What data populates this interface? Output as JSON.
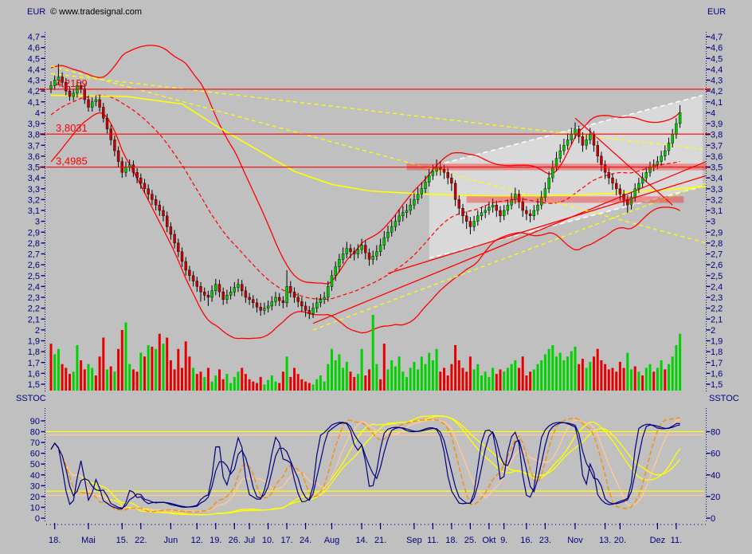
{
  "header": {
    "currency_left": "EUR",
    "copyright": "© www.tradesignal.com",
    "currency_right": "EUR"
  },
  "colors": {
    "background": "#c0c0c0",
    "axis_text": "#000080",
    "copyright_text": "#000000",
    "level_line": "#ff0000",
    "level_text": "#ff0000",
    "candle_up": "#00c800",
    "candle_down": "#c80000",
    "candle_outline": "#000000",
    "volume_up": "#00d200",
    "volume_down": "#e80000",
    "bollinger": "#ff0000",
    "ma_yellow": "#ffff00",
    "trend_red": "#ff0000",
    "dashed_yellow": "#ffff00",
    "wedge_line": "#ffffff",
    "wedge_fill": "rgba(255,255,255,0.40)",
    "zone_fill": "rgba(255,0,0,0.35)",
    "stoch_fast": "#000080",
    "stoch_orange": "#ff8c00",
    "stoch_peach": "#ffc896",
    "stoch_yellow": "#ffff00"
  },
  "chart_data": {
    "type": "candlestick",
    "unit": "EUR",
    "price_axis": {
      "min": 1.5,
      "max": 4.7,
      "step": 0.1,
      "tick_labels": [
        "4,7",
        "4,6",
        "4,5",
        "4,4",
        "4,3",
        "4,2",
        "4,1",
        "4",
        "3,9",
        "3,8",
        "3,7",
        "3,6",
        "3,5",
        "3,4",
        "3,3",
        "3,2",
        "3,1",
        "3",
        "2,9",
        "2,8",
        "2,7",
        "2,6",
        "2,5",
        "2,4",
        "2,3",
        "2,2",
        "2,1",
        "2",
        "1,9",
        "1,8",
        "1,7",
        "1,6",
        "1,5"
      ]
    },
    "x_axis": {
      "week_tick_days": [
        1,
        10,
        19,
        24,
        32,
        39,
        44,
        49,
        53,
        58,
        63,
        68,
        75,
        83,
        88,
        97,
        102,
        107,
        112,
        117,
        121,
        127,
        132,
        140,
        148,
        152,
        162,
        167
      ],
      "week_tick_labels": [
        "18.",
        "Mai",
        "15.",
        "22.",
        "Jun",
        "12.",
        "19.",
        "26.",
        "Jul",
        "10.",
        "17.",
        "24.",
        "Aug",
        "14.",
        "21.",
        "Sep",
        "11.",
        "18.",
        "25.",
        "Okt",
        "9.",
        "16.",
        "23.",
        "Nov",
        "13.",
        "20.",
        "Dez",
        "11."
      ]
    },
    "levels": [
      {
        "value": 4.2159,
        "label": "4,2159"
      },
      {
        "value": 3.8031,
        "label": "3,8031"
      },
      {
        "value": 3.4985,
        "label": "3,4985"
      }
    ],
    "zones": [
      {
        "price": 3.5,
        "half_height": 0.03,
        "from_day": 95,
        "to_day": 175
      },
      {
        "price": 3.2,
        "half_height": 0.03,
        "from_day": 111,
        "to_day": 169
      }
    ],
    "wedge": {
      "from_day": 101,
      "to_day": 174,
      "upper_from": 3.5,
      "upper_to": 4.16,
      "lower_from": 2.66,
      "lower_to": 3.32
    },
    "trendlines": [
      {
        "color": "#ff0000",
        "dash": "",
        "width": 1.3,
        "from": [
          70,
          2.06
        ],
        "to": [
          175,
          3.55
        ]
      },
      {
        "color": "#ff0000",
        "dash": "",
        "width": 1.3,
        "from": [
          90,
          2.52
        ],
        "to": [
          175,
          3.42
        ]
      },
      {
        "color": "#ff0000",
        "dash": "",
        "width": 1.3,
        "from": [
          140,
          3.95
        ],
        "to": [
          166,
          3.15
        ]
      },
      {
        "color": "#ffff00",
        "dash": "5,4",
        "width": 1.3,
        "from": [
          0,
          4.36
        ],
        "to": [
          175,
          3.66
        ]
      },
      {
        "color": "#ffff00",
        "dash": "5,4",
        "width": 1.3,
        "from": [
          0,
          4.43
        ],
        "to": [
          175,
          2.8
        ]
      },
      {
        "color": "#ffff00",
        "dash": "5,4",
        "width": 1.3,
        "from": [
          70,
          2.0
        ],
        "to": [
          175,
          3.35
        ]
      }
    ],
    "moving_average_yellow": {
      "days": [
        0,
        20,
        35,
        45,
        55,
        65,
        75,
        85,
        100,
        120,
        140,
        155,
        168,
        175
      ],
      "values": [
        4.16,
        4.15,
        4.08,
        3.86,
        3.66,
        3.46,
        3.34,
        3.28,
        3.25,
        3.23,
        3.24,
        3.27,
        3.3,
        3.32
      ]
    },
    "bollinger": {
      "period": 30,
      "stdev_mult": 2,
      "seed_closes": [
        3.5,
        3.55,
        3.58,
        3.62,
        3.65,
        3.7,
        3.72,
        3.75,
        3.8,
        3.85,
        3.88,
        3.9,
        3.95,
        3.98,
        4.0,
        4.03,
        4.05,
        4.08,
        4.1,
        4.12,
        4.14,
        4.15,
        4.16,
        4.18,
        4.18,
        4.2,
        4.2,
        4.21,
        4.22,
        4.22
      ]
    },
    "candles": [
      [
        4.22,
        4.29,
        4.18,
        4.25
      ],
      [
        4.25,
        4.34,
        4.21,
        4.3
      ],
      [
        4.3,
        4.45,
        4.26,
        4.33
      ],
      [
        4.33,
        4.37,
        4.24,
        4.28
      ],
      [
        4.28,
        4.32,
        4.16,
        4.2
      ],
      [
        4.2,
        4.24,
        4.11,
        4.15
      ],
      [
        4.15,
        4.22,
        4.11,
        4.18
      ],
      [
        4.18,
        4.29,
        4.14,
        4.25
      ],
      [
        4.25,
        4.29,
        4.18,
        4.22
      ],
      [
        4.22,
        4.26,
        4.08,
        4.12
      ],
      [
        4.12,
        4.16,
        4.01,
        4.05
      ],
      [
        4.05,
        4.14,
        4.01,
        4.1
      ],
      [
        4.1,
        4.16,
        4.06,
        4.12
      ],
      [
        4.12,
        4.16,
        4.01,
        4.05
      ],
      [
        4.05,
        4.09,
        3.91,
        3.95
      ],
      [
        3.95,
        3.99,
        3.81,
        3.85
      ],
      [
        3.85,
        3.89,
        3.7,
        3.75
      ],
      [
        3.75,
        3.79,
        3.6,
        3.65
      ],
      [
        3.65,
        3.69,
        3.5,
        3.55
      ],
      [
        3.55,
        3.59,
        3.4,
        3.45
      ],
      [
        3.45,
        3.55,
        3.41,
        3.5
      ],
      [
        3.5,
        3.57,
        3.46,
        3.52
      ],
      [
        3.52,
        3.56,
        3.41,
        3.45
      ],
      [
        3.45,
        3.49,
        3.35,
        3.4
      ],
      [
        3.4,
        3.44,
        3.3,
        3.35
      ],
      [
        3.35,
        3.39,
        3.26,
        3.3
      ],
      [
        3.3,
        3.34,
        3.2,
        3.25
      ],
      [
        3.25,
        3.29,
        3.15,
        3.2
      ],
      [
        3.2,
        3.24,
        3.1,
        3.15
      ],
      [
        3.15,
        3.19,
        3.05,
        3.1
      ],
      [
        3.1,
        3.14,
        3.0,
        3.05
      ],
      [
        3.05,
        3.09,
        2.9,
        2.95
      ],
      [
        2.95,
        2.99,
        2.83,
        2.88
      ],
      [
        2.88,
        2.92,
        2.75,
        2.8
      ],
      [
        2.8,
        2.84,
        2.67,
        2.72
      ],
      [
        2.72,
        2.76,
        2.58,
        2.63
      ],
      [
        2.63,
        2.67,
        2.5,
        2.55
      ],
      [
        2.55,
        2.59,
        2.45,
        2.5
      ],
      [
        2.5,
        2.54,
        2.4,
        2.45
      ],
      [
        2.45,
        2.49,
        2.35,
        2.4
      ],
      [
        2.4,
        2.44,
        2.26,
        2.35
      ],
      [
        2.35,
        2.39,
        2.27,
        2.32
      ],
      [
        2.32,
        2.36,
        2.22,
        2.3
      ],
      [
        2.3,
        2.41,
        2.26,
        2.36
      ],
      [
        2.36,
        2.47,
        2.32,
        2.42
      ],
      [
        2.42,
        2.46,
        2.3,
        2.35
      ],
      [
        2.35,
        2.39,
        2.23,
        2.28
      ],
      [
        2.28,
        2.37,
        2.24,
        2.32
      ],
      [
        2.32,
        2.4,
        2.28,
        2.35
      ],
      [
        2.35,
        2.44,
        2.31,
        2.39
      ],
      [
        2.39,
        2.47,
        2.35,
        2.42
      ],
      [
        2.42,
        2.46,
        2.31,
        2.36
      ],
      [
        2.36,
        2.4,
        2.25,
        2.3
      ],
      [
        2.3,
        2.34,
        2.23,
        2.28
      ],
      [
        2.28,
        2.32,
        2.2,
        2.25
      ],
      [
        2.25,
        2.29,
        2.16,
        2.21
      ],
      [
        2.21,
        2.25,
        2.13,
        2.18
      ],
      [
        2.18,
        2.25,
        2.14,
        2.2
      ],
      [
        2.2,
        2.27,
        2.16,
        2.22
      ],
      [
        2.22,
        2.31,
        2.18,
        2.26
      ],
      [
        2.26,
        2.35,
        2.22,
        2.3
      ],
      [
        2.3,
        2.34,
        2.22,
        2.27
      ],
      [
        2.27,
        2.31,
        2.2,
        2.25
      ],
      [
        2.25,
        2.55,
        2.21,
        2.4
      ],
      [
        2.4,
        2.45,
        2.3,
        2.35
      ],
      [
        2.35,
        2.39,
        2.25,
        2.3
      ],
      [
        2.3,
        2.34,
        2.21,
        2.26
      ],
      [
        2.26,
        2.3,
        2.17,
        2.22
      ],
      [
        2.22,
        2.26,
        2.12,
        2.18
      ],
      [
        2.18,
        2.22,
        2.1,
        2.15
      ],
      [
        2.15,
        2.25,
        2.11,
        2.2
      ],
      [
        2.2,
        2.3,
        2.16,
        2.25
      ],
      [
        2.25,
        2.33,
        2.21,
        2.28
      ],
      [
        2.28,
        2.35,
        2.24,
        2.3
      ],
      [
        2.3,
        2.45,
        2.26,
        2.4
      ],
      [
        2.4,
        2.55,
        2.36,
        2.5
      ],
      [
        2.5,
        2.63,
        2.45,
        2.58
      ],
      [
        2.58,
        2.7,
        2.53,
        2.65
      ],
      [
        2.65,
        2.76,
        2.61,
        2.7
      ],
      [
        2.7,
        2.81,
        2.66,
        2.75
      ],
      [
        2.75,
        2.79,
        2.66,
        2.72
      ],
      [
        2.72,
        2.76,
        2.64,
        2.7
      ],
      [
        2.7,
        2.79,
        2.66,
        2.74
      ],
      [
        2.74,
        2.84,
        2.7,
        2.78
      ],
      [
        2.78,
        2.82,
        2.65,
        2.71
      ],
      [
        2.71,
        2.75,
        2.59,
        2.65
      ],
      [
        2.65,
        2.73,
        2.6,
        2.68
      ],
      [
        2.68,
        2.78,
        2.64,
        2.72
      ],
      [
        2.72,
        2.84,
        2.68,
        2.78
      ],
      [
        2.78,
        2.91,
        2.74,
        2.85
      ],
      [
        2.85,
        2.96,
        2.81,
        2.9
      ],
      [
        2.9,
        3.01,
        2.86,
        2.95
      ],
      [
        2.95,
        3.06,
        2.91,
        3.0
      ],
      [
        3.0,
        3.11,
        2.96,
        3.05
      ],
      [
        3.05,
        3.14,
        3.0,
        3.08
      ],
      [
        3.08,
        3.16,
        3.03,
        3.1
      ],
      [
        3.1,
        3.21,
        3.06,
        3.15
      ],
      [
        3.15,
        3.26,
        3.11,
        3.2
      ],
      [
        3.2,
        3.31,
        3.16,
        3.25
      ],
      [
        3.25,
        3.36,
        3.21,
        3.3
      ],
      [
        3.3,
        3.42,
        3.26,
        3.36
      ],
      [
        3.36,
        3.48,
        3.32,
        3.42
      ],
      [
        3.42,
        3.52,
        3.38,
        3.46
      ],
      [
        3.46,
        3.57,
        3.42,
        3.5
      ],
      [
        3.5,
        3.55,
        3.42,
        3.48
      ],
      [
        3.48,
        3.52,
        3.39,
        3.45
      ],
      [
        3.45,
        3.49,
        3.34,
        3.4
      ],
      [
        3.4,
        3.44,
        3.28,
        3.35
      ],
      [
        3.35,
        3.38,
        3.14,
        3.2
      ],
      [
        3.2,
        3.24,
        3.06,
        3.12
      ],
      [
        3.12,
        3.16,
        2.98,
        3.05
      ],
      [
        3.05,
        3.09,
        2.93,
        3.0
      ],
      [
        3.0,
        3.04,
        2.88,
        2.95
      ],
      [
        2.95,
        3.05,
        2.91,
        3.0
      ],
      [
        3.0,
        3.1,
        2.96,
        3.05
      ],
      [
        3.05,
        3.13,
        3.01,
        3.08
      ],
      [
        3.08,
        3.15,
        3.03,
        3.1
      ],
      [
        3.1,
        3.18,
        3.06,
        3.13
      ],
      [
        3.13,
        3.21,
        3.08,
        3.15
      ],
      [
        3.15,
        3.19,
        3.04,
        3.1
      ],
      [
        3.1,
        3.14,
        2.99,
        3.05
      ],
      [
        3.05,
        3.15,
        3.01,
        3.1
      ],
      [
        3.1,
        3.2,
        3.06,
        3.15
      ],
      [
        3.15,
        3.26,
        3.11,
        3.2
      ],
      [
        3.2,
        3.31,
        3.16,
        3.25
      ],
      [
        3.25,
        3.29,
        3.12,
        3.18
      ],
      [
        3.18,
        3.22,
        3.04,
        3.1
      ],
      [
        3.1,
        3.14,
        3.01,
        3.07
      ],
      [
        3.07,
        3.11,
        2.99,
        3.05
      ],
      [
        3.05,
        3.15,
        3.01,
        3.1
      ],
      [
        3.1,
        3.21,
        3.06,
        3.15
      ],
      [
        3.15,
        3.28,
        3.11,
        3.22
      ],
      [
        3.22,
        3.36,
        3.18,
        3.3
      ],
      [
        3.3,
        3.46,
        3.26,
        3.4
      ],
      [
        3.4,
        3.56,
        3.36,
        3.5
      ],
      [
        3.5,
        3.64,
        3.46,
        3.58
      ],
      [
        3.58,
        3.71,
        3.54,
        3.65
      ],
      [
        3.65,
        3.76,
        3.61,
        3.7
      ],
      [
        3.7,
        3.81,
        3.66,
        3.75
      ],
      [
        3.75,
        3.86,
        3.71,
        3.8
      ],
      [
        3.8,
        3.91,
        3.76,
        3.85
      ],
      [
        3.85,
        3.88,
        3.72,
        3.78
      ],
      [
        3.78,
        3.82,
        3.64,
        3.7
      ],
      [
        3.7,
        3.8,
        3.66,
        3.75
      ],
      [
        3.75,
        3.86,
        3.71,
        3.8
      ],
      [
        3.8,
        3.83,
        3.64,
        3.7
      ],
      [
        3.7,
        3.74,
        3.54,
        3.6
      ],
      [
        3.6,
        3.64,
        3.46,
        3.52
      ],
      [
        3.52,
        3.56,
        3.39,
        3.45
      ],
      [
        3.45,
        3.49,
        3.34,
        3.4
      ],
      [
        3.4,
        3.44,
        3.29,
        3.35
      ],
      [
        3.35,
        3.39,
        3.24,
        3.3
      ],
      [
        3.3,
        3.34,
        3.19,
        3.25
      ],
      [
        3.25,
        3.29,
        3.14,
        3.2
      ],
      [
        3.2,
        3.24,
        3.08,
        3.15
      ],
      [
        3.15,
        3.27,
        3.11,
        3.22
      ],
      [
        3.22,
        3.35,
        3.18,
        3.3
      ],
      [
        3.3,
        3.4,
        3.26,
        3.35
      ],
      [
        3.35,
        3.45,
        3.31,
        3.4
      ],
      [
        3.4,
        3.5,
        3.36,
        3.45
      ],
      [
        3.45,
        3.55,
        3.41,
        3.5
      ],
      [
        3.5,
        3.57,
        3.46,
        3.52
      ],
      [
        3.52,
        3.6,
        3.48,
        3.55
      ],
      [
        3.55,
        3.65,
        3.51,
        3.6
      ],
      [
        3.6,
        3.7,
        3.56,
        3.65
      ],
      [
        3.65,
        3.77,
        3.61,
        3.72
      ],
      [
        3.72,
        3.85,
        3.68,
        3.8
      ],
      [
        3.8,
        3.95,
        3.76,
        3.9
      ],
      [
        3.9,
        4.07,
        3.86,
        4.0
      ]
    ],
    "volume_signed": [
      -62,
      48,
      55,
      -35,
      -30,
      -22,
      25,
      60,
      -40,
      -28,
      35,
      30,
      -20,
      -45,
      -70,
      28,
      -32,
      25,
      -55,
      -80,
      90,
      35,
      -28,
      -25,
      50,
      -45,
      60,
      -58,
      55,
      -75,
      62,
      -70,
      -40,
      -28,
      -55,
      -30,
      -65,
      -45,
      30,
      -22,
      -25,
      18,
      -30,
      12,
      20,
      -28,
      -15,
      22,
      10,
      18,
      25,
      -30,
      -22,
      -15,
      -12,
      -10,
      -18,
      8,
      14,
      20,
      12,
      -10,
      -25,
      45,
      -18,
      -30,
      -22,
      -15,
      -12,
      -10,
      8,
      15,
      20,
      12,
      35,
      55,
      40,
      48,
      30,
      38,
      -25,
      -18,
      22,
      55,
      -20,
      -28,
      100,
      35,
      -15,
      -62,
      28,
      40,
      32,
      45,
      25,
      18,
      30,
      38,
      28,
      45,
      35,
      50,
      40,
      55,
      -25,
      -30,
      -20,
      -35,
      -60,
      -40,
      -30,
      -25,
      -45,
      28,
      35,
      20,
      25,
      18,
      30,
      -22,
      -28,
      25,
      30,
      35,
      40,
      -30,
      -45,
      -20,
      -25,
      28,
      35,
      40,
      48,
      55,
      60,
      45,
      50,
      40,
      45,
      52,
      58,
      -35,
      -42,
      30,
      38,
      -45,
      -55,
      -40,
      -35,
      -28,
      -30,
      -25,
      -38,
      -30,
      50,
      28,
      -32,
      25,
      -20,
      30,
      35,
      -25,
      30,
      40,
      -28,
      35,
      45,
      60,
      75
    ],
    "volume_scale_max": 100,
    "stochastic": {
      "title": "SSTOC",
      "left_tick_labels": [
        "90",
        "80",
        "70",
        "60",
        "50",
        "40",
        "30",
        "20",
        "10",
        "0"
      ],
      "right_tick_labels": [
        "80",
        "60",
        "40",
        "20",
        "0"
      ],
      "ref_lines": [
        {
          "value": 80,
          "color": "#ffff00"
        },
        {
          "value": 25,
          "color": "#ffff00"
        },
        {
          "value": 77,
          "color": "#ffc896"
        },
        {
          "value": 21,
          "color": "#ffc896"
        }
      ],
      "series_params": {
        "fast_k_period": 5,
        "fast_k_smooth": 2,
        "fast_d_smooth": 4,
        "slow_period": 12,
        "slow_smooth": 5,
        "slow_signal_smooth": 9,
        "long_period": 30,
        "long_smooth": 12,
        "long_signal_smooth": 16
      }
    }
  }
}
